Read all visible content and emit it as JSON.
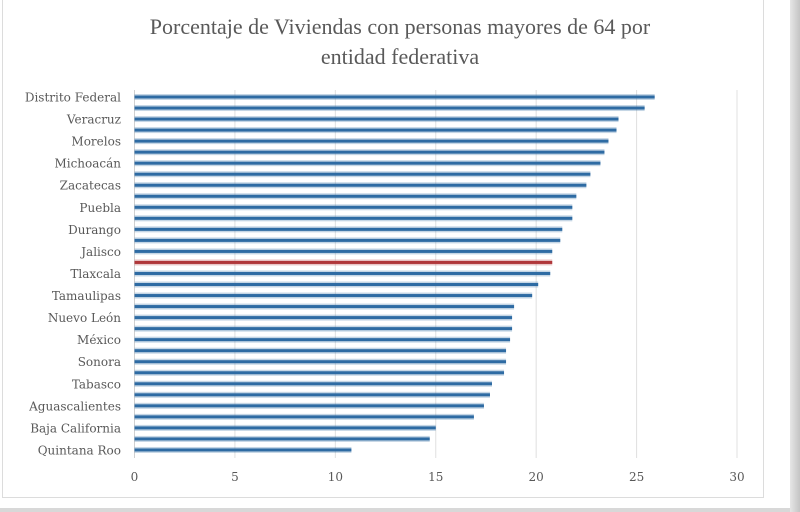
{
  "chart_data": {
    "type": "bar",
    "orientation": "horizontal",
    "title": "Porcentaje de Viviendas con personas mayores de 64 por entidad federativa",
    "title_lines": [
      "Porcentaje de Viviendas con personas mayores de 64 por",
      "entidad federativa"
    ],
    "xlabel": "",
    "ylabel": "",
    "xlim": [
      0,
      30
    ],
    "x_ticks": [
      0,
      5,
      10,
      15,
      20,
      25,
      30
    ],
    "grid": true,
    "legend": "none",
    "colors": {
      "default": "#2e6ba3",
      "highlight": "#b0373a"
    },
    "categories": [
      "Distrito Federal",
      "",
      "Veracruz",
      "",
      "Morelos",
      "",
      "Michoacán",
      "",
      "Zacatecas",
      "",
      "Puebla",
      "",
      "Durango",
      "",
      "Jalisco",
      "",
      "Tlaxcala",
      "",
      "Tamaulipas",
      "",
      "Nuevo León",
      "",
      "México",
      "",
      "Sonora",
      "",
      "Tabasco",
      "",
      "Aguascalientes",
      "",
      "Baja California",
      "",
      "Quintana Roo"
    ],
    "values": [
      25.9,
      25.4,
      24.1,
      24.0,
      23.6,
      23.4,
      23.2,
      22.7,
      22.5,
      22.0,
      21.8,
      21.8,
      21.3,
      21.2,
      20.8,
      20.8,
      20.7,
      20.1,
      19.8,
      18.9,
      18.8,
      18.8,
      18.7,
      18.5,
      18.5,
      18.4,
      17.8,
      17.7,
      17.4,
      16.9,
      15.0,
      14.7,
      10.8
    ],
    "highlight_index": 15
  }
}
